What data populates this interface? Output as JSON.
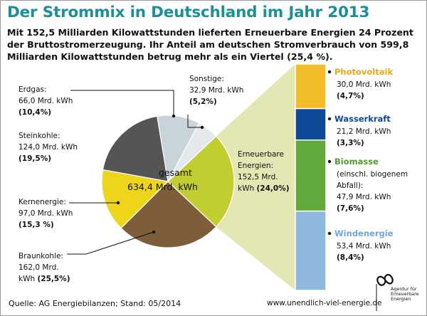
{
  "title": "Der Strommix in Deutschland im Jahr 2013",
  "subtitle": "Mit 152,5 Milliarden Kilowattstunden lieferten Erneuerbare Energien 24 Prozent der Bruttostromerzeugung. Ihr Anteil am deutschen Stromverbrauch von 599,8 Milliarden Kilowattstunden betrug mehr als ein Viertel (25,4 %).",
  "footer": {
    "source": "Quelle:  AG Energiebilanzen; Stand: 05/2014",
    "url": "www.unendlich-viel-energie.de",
    "logo_text": "Agentur für Erneuerbare Energien"
  },
  "chart_data": [
    {
      "type": "pie",
      "center_label": [
        "gesamt",
        "634,4 Mrd. kWh"
      ],
      "slices": [
        {
          "name": "Erneuerbare Energien",
          "value": 152.5,
          "value_label": "152,5 Mrd.",
          "unit": "kWh",
          "percent": "(24,0%)",
          "color": "#c2cd2f",
          "label_lines": [
            "Erneuerbare",
            "Energien:",
            "152,5 Mrd.",
            "kWh (24,0%)"
          ]
        },
        {
          "name": "Braunkohle",
          "value": 162.0,
          "value_label": "162,0 Mrd.",
          "unit": "kWh",
          "percent": "(25,5%)",
          "color": "#7e5d3b",
          "label_lines": [
            "Braunkohle:",
            "162,0 Mrd.",
            "kWh (25,5%)"
          ]
        },
        {
          "name": "Kernenergie",
          "value": 97.0,
          "value_label": "97,0 Mrd. kWh",
          "percent": "(15,3 %)",
          "color": "#ecd51b",
          "label_lines": [
            "Kernenergie:",
            "97,0 Mrd. kWh",
            "(15,3 %)"
          ]
        },
        {
          "name": "Steinkohle",
          "value": 124.0,
          "value_label": "124,0 Mrd. kWh",
          "percent": "(19,5%)",
          "color": "#555555",
          "label_lines": [
            "Steinkohle:",
            "124,0 Mrd. kWh",
            "(19,5%)"
          ]
        },
        {
          "name": "Erdgas",
          "value": 66.0,
          "value_label": "66,0 Mrd. kWh",
          "percent": "(10,4%)",
          "color": "#c9d3da",
          "label_lines": [
            "Erdgas:",
            "66,0 Mrd. kWh",
            "(10,4%)"
          ]
        },
        {
          "name": "Sonstige",
          "value": 32.9,
          "value_label": "32,9 Mrd. kWh",
          "percent": "(5,2%)",
          "color": "#e4e9ed",
          "label_lines": [
            "Sonstige:",
            "32,9 Mrd. kWh",
            "(5,2%)"
          ]
        }
      ]
    },
    {
      "type": "bar",
      "stacked": true,
      "series": [
        {
          "name": "Photovoltaik",
          "value": 30.0,
          "value_label": "30,0 Mrd. kWh",
          "percent": "(4,7%)",
          "color": "#f2bd28",
          "name_color": "#e7a817",
          "label_lines": [
            "30,0 Mrd. kWh",
            "(4,7%)"
          ]
        },
        {
          "name": "Wasserkraft",
          "value": 21.2,
          "value_label": "21,2 Mrd. kWh",
          "percent": "(3,3%)",
          "color": "#0c4a96",
          "name_color": "#0c4a96",
          "label_lines": [
            "21,2 Mrd. kWh",
            "(3,3%)"
          ]
        },
        {
          "name": "Biomasse",
          "value": 47.9,
          "value_label": "47,9 Mrd. kWh",
          "percent": "(7,6%)",
          "color": "#62a93b",
          "name_color": "#4f9c2e",
          "label_lines": [
            "(einschl. biogenem",
            "Abfall):",
            "47,9 Mrd. kWh",
            "(7,6%)"
          ]
        },
        {
          "name": "Windenergie",
          "value": 53.4,
          "value_label": "53,4 Mrd. kWh",
          "percent": "(8,4%)",
          "color": "#8eb8de",
          "name_color": "#6ea6d8",
          "label_lines": [
            "53,4 Mrd. kWh",
            "(8,4%)"
          ]
        }
      ]
    }
  ]
}
